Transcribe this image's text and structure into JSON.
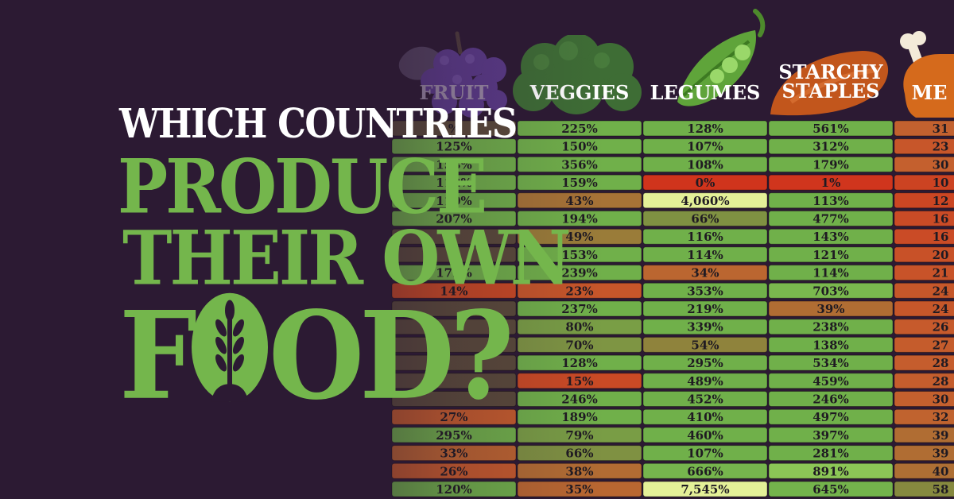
{
  "title": {
    "line1": "WHICH COUNTRIES",
    "line2": "PRODUCE",
    "line3": "THEIR OWN",
    "line4_prefix": "F",
    "line4_suffix": "OD?"
  },
  "colors": {
    "background": "#2c1a33",
    "title_white": "#ffffff",
    "title_green": "#74b64c",
    "high": "#6fb04a",
    "low": "#d2331c",
    "very_high": "#e4ef9a"
  },
  "icons": [
    "grapes-icon",
    "broccoli-icon",
    "peapod-icon",
    "sweet-potato-icon",
    "meat-drumstick-icon",
    "wheat-icon"
  ],
  "chart_data": {
    "type": "table",
    "columns": [
      "FRUIT",
      "VEGGIES",
      "LEGUMES",
      "STARCHY STAPLES",
      "ME"
    ],
    "rows": [
      {
        "FRUIT": "%",
        "VEGGIES": "225%",
        "LEGUMES": "128%",
        "STARCHY STAPLES": "561%",
        "ME": "31"
      },
      {
        "FRUIT": "125%",
        "VEGGIES": "150%",
        "LEGUMES": "107%",
        "STARCHY STAPLES": "312%",
        "ME": "23"
      },
      {
        "FRUIT": "153%",
        "VEGGIES": "356%",
        "LEGUMES": "108%",
        "STARCHY STAPLES": "179%",
        "ME": "30"
      },
      {
        "FRUIT": "112%",
        "VEGGIES": "159%",
        "LEGUMES": "0%",
        "STARCHY STAPLES": "1%",
        "ME": "10"
      },
      {
        "FRUIT": "110%",
        "VEGGIES": "43%",
        "LEGUMES": "4,060%",
        "STARCHY STAPLES": "113%",
        "ME": "12"
      },
      {
        "FRUIT": "207%",
        "VEGGIES": "194%",
        "LEGUMES": "66%",
        "STARCHY STAPLES": "477%",
        "ME": "16"
      },
      {
        "FRUIT": "",
        "VEGGIES": "49%",
        "LEGUMES": "116%",
        "STARCHY STAPLES": "143%",
        "ME": "16"
      },
      {
        "FRUIT": "",
        "VEGGIES": "153%",
        "LEGUMES": "114%",
        "STARCHY STAPLES": "121%",
        "ME": "20"
      },
      {
        "FRUIT": "172%",
        "VEGGIES": "239%",
        "LEGUMES": "34%",
        "STARCHY STAPLES": "114%",
        "ME": "21"
      },
      {
        "FRUIT": "14%",
        "VEGGIES": "23%",
        "LEGUMES": "353%",
        "STARCHY STAPLES": "703%",
        "ME": "24"
      },
      {
        "FRUIT": "",
        "VEGGIES": "237%",
        "LEGUMES": "219%",
        "STARCHY STAPLES": "39%",
        "ME": "24"
      },
      {
        "FRUIT": "",
        "VEGGIES": "80%",
        "LEGUMES": "339%",
        "STARCHY STAPLES": "238%",
        "ME": "26"
      },
      {
        "FRUIT": "",
        "VEGGIES": "70%",
        "LEGUMES": "54%",
        "STARCHY STAPLES": "138%",
        "ME": "27"
      },
      {
        "FRUIT": "",
        "VEGGIES": "128%",
        "LEGUMES": "295%",
        "STARCHY STAPLES": "534%",
        "ME": "28"
      },
      {
        "FRUIT": "",
        "VEGGIES": "15%",
        "LEGUMES": "489%",
        "STARCHY STAPLES": "459%",
        "ME": "28"
      },
      {
        "FRUIT": "",
        "VEGGIES": "246%",
        "LEGUMES": "452%",
        "STARCHY STAPLES": "246%",
        "ME": "30"
      },
      {
        "FRUIT": "27%",
        "VEGGIES": "189%",
        "LEGUMES": "410%",
        "STARCHY STAPLES": "497%",
        "ME": "32"
      },
      {
        "FRUIT": "295%",
        "VEGGIES": "79%",
        "LEGUMES": "460%",
        "STARCHY STAPLES": "397%",
        "ME": "39"
      },
      {
        "FRUIT": "33%",
        "VEGGIES": "66%",
        "LEGUMES": "107%",
        "STARCHY STAPLES": "281%",
        "ME": "39"
      },
      {
        "FRUIT": "26%",
        "VEGGIES": "38%",
        "LEGUMES": "666%",
        "STARCHY STAPLES": "891%",
        "ME": "40"
      },
      {
        "FRUIT": "120%",
        "VEGGIES": "35%",
        "LEGUMES": "7,545%",
        "STARCHY STAPLES": "645%",
        "ME": "58"
      }
    ]
  }
}
